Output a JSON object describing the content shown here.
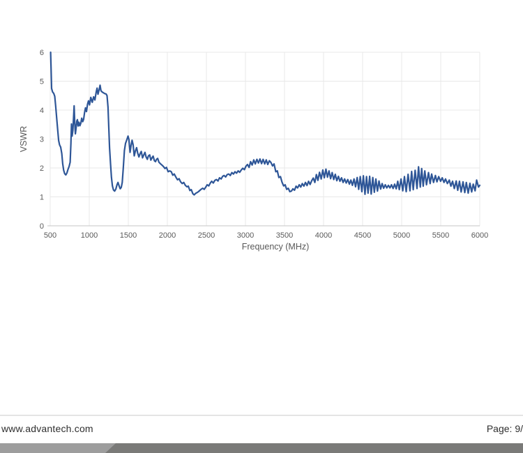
{
  "footer": {
    "website": "www.advantech.com",
    "page_label": "Page: 9/"
  },
  "colors": {
    "line": "#2e5697",
    "grid": "#e8e8e8",
    "axis": "#c6c6c6",
    "tick_text": "#595959",
    "footer_text": "#2e2e2e",
    "footer_rule": "#e4e4e4",
    "bar_light": "#9d9d9d",
    "bar_dark": "#7a7a78"
  },
  "chart_data": {
    "type": "line",
    "title": "",
    "xlabel": "Frequency (MHz)",
    "ylabel": "VSWR",
    "xlim": [
      500,
      6000
    ],
    "ylim": [
      0,
      6
    ],
    "x_ticks": [
      500,
      1000,
      1500,
      2000,
      2500,
      3000,
      3500,
      4000,
      4500,
      5000,
      5500,
      6000
    ],
    "y_ticks": [
      0,
      1,
      2,
      3,
      4,
      5,
      6
    ],
    "grid": true,
    "legend_position": "none",
    "series": [
      {
        "name": "VSWR",
        "points": [
          [
            505,
            6.0
          ],
          [
            512,
            5.4
          ],
          [
            518,
            4.75
          ],
          [
            530,
            4.63
          ],
          [
            545,
            4.58
          ],
          [
            558,
            4.48
          ],
          [
            570,
            4.15
          ],
          [
            583,
            3.72
          ],
          [
            596,
            3.3
          ],
          [
            608,
            2.95
          ],
          [
            620,
            2.8
          ],
          [
            634,
            2.72
          ],
          [
            648,
            2.5
          ],
          [
            660,
            2.15
          ],
          [
            672,
            1.92
          ],
          [
            686,
            1.8
          ],
          [
            700,
            1.76
          ],
          [
            714,
            1.83
          ],
          [
            728,
            1.95
          ],
          [
            742,
            2.05
          ],
          [
            755,
            2.2
          ],
          [
            765,
            2.85
          ],
          [
            772,
            3.52
          ],
          [
            780,
            3.1
          ],
          [
            790,
            3.3
          ],
          [
            800,
            3.8
          ],
          [
            806,
            4.15
          ],
          [
            814,
            3.55
          ],
          [
            822,
            3.18
          ],
          [
            830,
            3.35
          ],
          [
            840,
            3.62
          ],
          [
            848,
            3.67
          ],
          [
            858,
            3.45
          ],
          [
            868,
            3.58
          ],
          [
            880,
            3.46
          ],
          [
            892,
            3.55
          ],
          [
            904,
            3.72
          ],
          [
            916,
            3.6
          ],
          [
            928,
            3.68
          ],
          [
            940,
            3.92
          ],
          [
            952,
            4.08
          ],
          [
            964,
            3.95
          ],
          [
            978,
            4.2
          ],
          [
            990,
            4.32
          ],
          [
            1004,
            4.18
          ],
          [
            1020,
            4.44
          ],
          [
            1038,
            4.27
          ],
          [
            1056,
            4.46
          ],
          [
            1072,
            4.35
          ],
          [
            1088,
            4.62
          ],
          [
            1100,
            4.76
          ],
          [
            1112,
            4.55
          ],
          [
            1126,
            4.7
          ],
          [
            1138,
            4.86
          ],
          [
            1150,
            4.67
          ],
          [
            1164,
            4.63
          ],
          [
            1180,
            4.6
          ],
          [
            1198,
            4.57
          ],
          [
            1215,
            4.56
          ],
          [
            1228,
            4.5
          ],
          [
            1240,
            4.1
          ],
          [
            1250,
            3.4
          ],
          [
            1260,
            2.7
          ],
          [
            1272,
            2.15
          ],
          [
            1284,
            1.68
          ],
          [
            1296,
            1.38
          ],
          [
            1310,
            1.24
          ],
          [
            1325,
            1.2
          ],
          [
            1340,
            1.27
          ],
          [
            1355,
            1.42
          ],
          [
            1368,
            1.5
          ],
          [
            1382,
            1.38
          ],
          [
            1396,
            1.28
          ],
          [
            1410,
            1.33
          ],
          [
            1422,
            1.5
          ],
          [
            1436,
            2.0
          ],
          [
            1450,
            2.6
          ],
          [
            1464,
            2.85
          ],
          [
            1480,
            2.97
          ],
          [
            1496,
            3.1
          ],
          [
            1508,
            2.98
          ],
          [
            1522,
            2.54
          ],
          [
            1536,
            2.78
          ],
          [
            1548,
            2.96
          ],
          [
            1562,
            2.8
          ],
          [
            1576,
            2.42
          ],
          [
            1590,
            2.58
          ],
          [
            1606,
            2.7
          ],
          [
            1620,
            2.52
          ],
          [
            1636,
            2.38
          ],
          [
            1650,
            2.49
          ],
          [
            1666,
            2.57
          ],
          [
            1682,
            2.35
          ],
          [
            1698,
            2.45
          ],
          [
            1713,
            2.54
          ],
          [
            1728,
            2.38
          ],
          [
            1744,
            2.3
          ],
          [
            1758,
            2.42
          ],
          [
            1774,
            2.45
          ],
          [
            1788,
            2.27
          ],
          [
            1804,
            2.35
          ],
          [
            1818,
            2.41
          ],
          [
            1834,
            2.25
          ],
          [
            1848,
            2.22
          ],
          [
            1862,
            2.3
          ],
          [
            1876,
            2.33
          ],
          [
            1892,
            2.2
          ],
          [
            1910,
            2.15
          ],
          [
            1930,
            2.1
          ],
          [
            1950,
            2.05
          ],
          [
            1970,
            1.98
          ],
          [
            1988,
            2.02
          ],
          [
            2010,
            1.87
          ],
          [
            2030,
            1.9
          ],
          [
            2050,
            1.87
          ],
          [
            2070,
            1.75
          ],
          [
            2088,
            1.79
          ],
          [
            2110,
            1.68
          ],
          [
            2130,
            1.59
          ],
          [
            2150,
            1.63
          ],
          [
            2170,
            1.52
          ],
          [
            2190,
            1.46
          ],
          [
            2210,
            1.5
          ],
          [
            2230,
            1.4
          ],
          [
            2250,
            1.35
          ],
          [
            2268,
            1.37
          ],
          [
            2288,
            1.22
          ],
          [
            2306,
            1.25
          ],
          [
            2326,
            1.11
          ],
          [
            2344,
            1.07
          ],
          [
            2362,
            1.12
          ],
          [
            2380,
            1.15
          ],
          [
            2398,
            1.18
          ],
          [
            2418,
            1.23
          ],
          [
            2436,
            1.27
          ],
          [
            2454,
            1.3
          ],
          [
            2472,
            1.26
          ],
          [
            2492,
            1.34
          ],
          [
            2510,
            1.42
          ],
          [
            2530,
            1.38
          ],
          [
            2550,
            1.48
          ],
          [
            2568,
            1.54
          ],
          [
            2588,
            1.48
          ],
          [
            2608,
            1.57
          ],
          [
            2628,
            1.6
          ],
          [
            2648,
            1.55
          ],
          [
            2668,
            1.66
          ],
          [
            2688,
            1.62
          ],
          [
            2708,
            1.71
          ],
          [
            2726,
            1.74
          ],
          [
            2746,
            1.69
          ],
          [
            2766,
            1.77
          ],
          [
            2786,
            1.79
          ],
          [
            2806,
            1.74
          ],
          [
            2826,
            1.84
          ],
          [
            2846,
            1.79
          ],
          [
            2866,
            1.87
          ],
          [
            2886,
            1.82
          ],
          [
            2906,
            1.9
          ],
          [
            2926,
            1.85
          ],
          [
            2946,
            1.93
          ],
          [
            2966,
            1.99
          ],
          [
            2986,
            1.94
          ],
          [
            3006,
            2.06
          ],
          [
            3026,
            2.12
          ],
          [
            3046,
            2.02
          ],
          [
            3066,
            2.22
          ],
          [
            3086,
            2.1
          ],
          [
            3106,
            2.28
          ],
          [
            3126,
            2.14
          ],
          [
            3146,
            2.3
          ],
          [
            3166,
            2.17
          ],
          [
            3186,
            2.31
          ],
          [
            3206,
            2.15
          ],
          [
            3226,
            2.3
          ],
          [
            3246,
            2.14
          ],
          [
            3266,
            2.28
          ],
          [
            3286,
            2.12
          ],
          [
            3306,
            2.25
          ],
          [
            3326,
            2.19
          ],
          [
            3346,
            2.07
          ],
          [
            3366,
            2.14
          ],
          [
            3388,
            1.87
          ],
          [
            3408,
            1.9
          ],
          [
            3428,
            1.67
          ],
          [
            3448,
            1.7
          ],
          [
            3468,
            1.51
          ],
          [
            3488,
            1.38
          ],
          [
            3508,
            1.42
          ],
          [
            3528,
            1.26
          ],
          [
            3548,
            1.3
          ],
          [
            3568,
            1.18
          ],
          [
            3588,
            1.2
          ],
          [
            3608,
            1.28
          ],
          [
            3628,
            1.23
          ],
          [
            3648,
            1.37
          ],
          [
            3668,
            1.31
          ],
          [
            3688,
            1.42
          ],
          [
            3708,
            1.34
          ],
          [
            3728,
            1.46
          ],
          [
            3748,
            1.37
          ],
          [
            3768,
            1.5
          ],
          [
            3788,
            1.39
          ],
          [
            3808,
            1.54
          ],
          [
            3828,
            1.43
          ],
          [
            3848,
            1.56
          ],
          [
            3868,
            1.65
          ],
          [
            3888,
            1.5
          ],
          [
            3908,
            1.77
          ],
          [
            3928,
            1.57
          ],
          [
            3948,
            1.85
          ],
          [
            3970,
            1.62
          ],
          [
            3990,
            1.93
          ],
          [
            4010,
            1.66
          ],
          [
            4030,
            1.96
          ],
          [
            4050,
            1.68
          ],
          [
            4070,
            1.9
          ],
          [
            4090,
            1.63
          ],
          [
            4110,
            1.84
          ],
          [
            4130,
            1.6
          ],
          [
            4150,
            1.78
          ],
          [
            4170,
            1.56
          ],
          [
            4190,
            1.71
          ],
          [
            4210,
            1.54
          ],
          [
            4230,
            1.66
          ],
          [
            4250,
            1.5
          ],
          [
            4270,
            1.62
          ],
          [
            4290,
            1.48
          ],
          [
            4310,
            1.6
          ],
          [
            4330,
            1.44
          ],
          [
            4350,
            1.58
          ],
          [
            4370,
            1.4
          ],
          [
            4390,
            1.62
          ],
          [
            4410,
            1.35
          ],
          [
            4430,
            1.67
          ],
          [
            4450,
            1.26
          ],
          [
            4470,
            1.7
          ],
          [
            4490,
            1.18
          ],
          [
            4510,
            1.73
          ],
          [
            4530,
            1.09
          ],
          [
            4550,
            1.7
          ],
          [
            4570,
            1.13
          ],
          [
            4590,
            1.71
          ],
          [
            4610,
            1.1
          ],
          [
            4630,
            1.67
          ],
          [
            4650,
            1.16
          ],
          [
            4670,
            1.62
          ],
          [
            4690,
            1.2
          ],
          [
            4710,
            1.55
          ],
          [
            4730,
            1.27
          ],
          [
            4750,
            1.46
          ],
          [
            4770,
            1.3
          ],
          [
            4790,
            1.42
          ],
          [
            4810,
            1.31
          ],
          [
            4830,
            1.4
          ],
          [
            4850,
            1.31
          ],
          [
            4870,
            1.42
          ],
          [
            4890,
            1.29
          ],
          [
            4910,
            1.44
          ],
          [
            4930,
            1.28
          ],
          [
            4950,
            1.54
          ],
          [
            4970,
            1.25
          ],
          [
            4992,
            1.62
          ],
          [
            5014,
            1.21
          ],
          [
            5036,
            1.7
          ],
          [
            5058,
            1.18
          ],
          [
            5082,
            1.78
          ],
          [
            5106,
            1.21
          ],
          [
            5128,
            1.88
          ],
          [
            5148,
            1.25
          ],
          [
            5172,
            1.92
          ],
          [
            5196,
            1.29
          ],
          [
            5216,
            2.04
          ],
          [
            5238,
            1.34
          ],
          [
            5256,
            1.98
          ],
          [
            5276,
            1.37
          ],
          [
            5296,
            1.9
          ],
          [
            5318,
            1.42
          ],
          [
            5344,
            1.84
          ],
          [
            5364,
            1.46
          ],
          [
            5384,
            1.79
          ],
          [
            5408,
            1.5
          ],
          [
            5432,
            1.74
          ],
          [
            5452,
            1.52
          ],
          [
            5474,
            1.7
          ],
          [
            5498,
            1.54
          ],
          [
            5520,
            1.66
          ],
          [
            5542,
            1.5
          ],
          [
            5562,
            1.62
          ],
          [
            5586,
            1.46
          ],
          [
            5610,
            1.58
          ],
          [
            5630,
            1.37
          ],
          [
            5652,
            1.54
          ],
          [
            5674,
            1.29
          ],
          [
            5698,
            1.55
          ],
          [
            5718,
            1.23
          ],
          [
            5740,
            1.54
          ],
          [
            5762,
            1.17
          ],
          [
            5786,
            1.52
          ],
          [
            5808,
            1.15
          ],
          [
            5828,
            1.5
          ],
          [
            5852,
            1.13
          ],
          [
            5874,
            1.47
          ],
          [
            5896,
            1.17
          ],
          [
            5916,
            1.44
          ],
          [
            5940,
            1.21
          ],
          [
            5960,
            1.58
          ],
          [
            5984,
            1.34
          ],
          [
            6000,
            1.4
          ]
        ]
      }
    ]
  }
}
